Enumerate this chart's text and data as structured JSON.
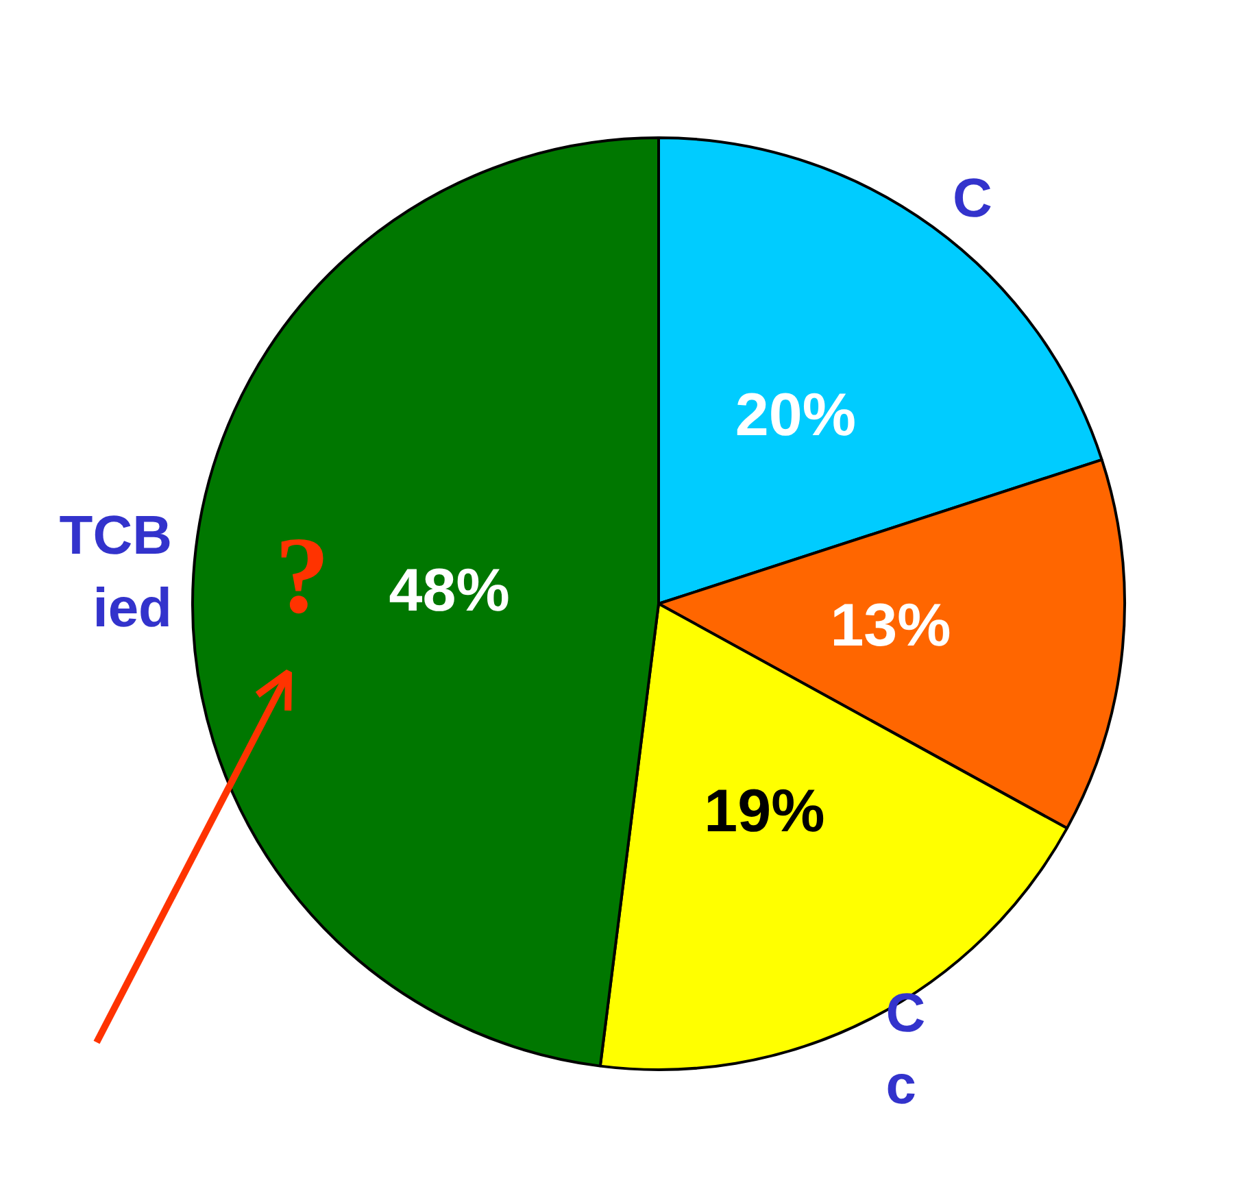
{
  "chart_data": {
    "type": "pie",
    "categories": [
      "C",
      null,
      "C\nc",
      "TCB\nied"
    ],
    "values": [
      20,
      13,
      19,
      48
    ],
    "colors": [
      "#00ccff",
      "#ff6600",
      "#ffff00",
      "#007700"
    ],
    "value_labels": [
      "20%",
      "13%",
      "19%",
      "48%"
    ],
    "annotations": [
      "?"
    ]
  }
}
